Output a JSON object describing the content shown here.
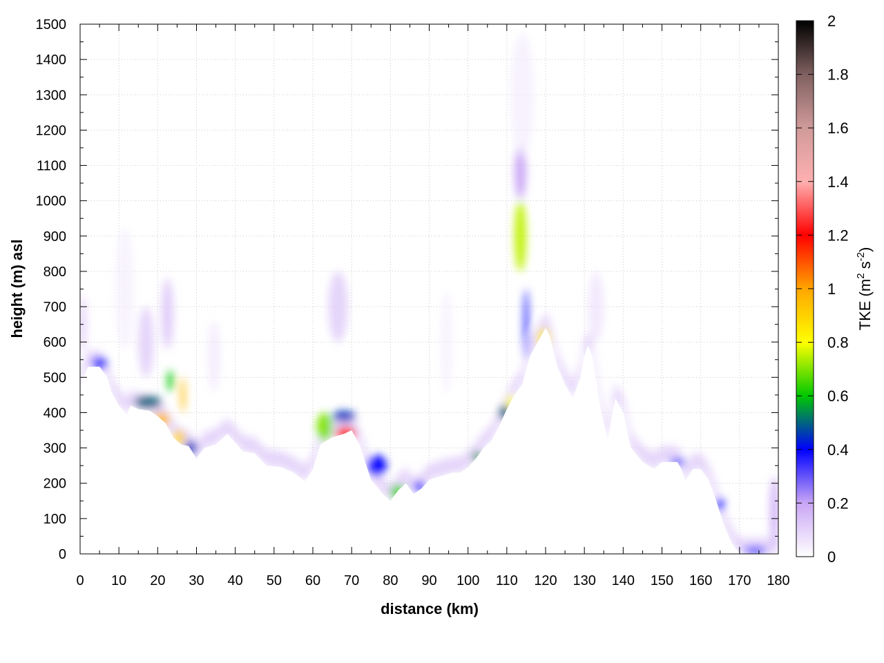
{
  "chart_data": {
    "type": "heatmap",
    "title": "",
    "xlabel": "distance (km)",
    "ylabel": "height (m) asl",
    "xlim": [
      0,
      180
    ],
    "ylim": [
      0,
      1500
    ],
    "xticks": [
      0,
      10,
      20,
      30,
      40,
      50,
      60,
      70,
      80,
      90,
      100,
      110,
      120,
      130,
      140,
      150,
      160,
      170,
      180
    ],
    "yticks": [
      0,
      100,
      200,
      300,
      400,
      500,
      600,
      700,
      800,
      900,
      1000,
      1100,
      1200,
      1300,
      1400,
      1500
    ],
    "grid": true,
    "colorbar": {
      "label_prefix": "TKE (m",
      "label_sup1": "2",
      "label_mid": " s",
      "label_sup2": "-2",
      "label_suffix": ")",
      "range": [
        0,
        2
      ],
      "ticks": [
        "0",
        "0.2",
        "0.4",
        "0.6",
        "0.8",
        "1",
        "1.2",
        "1.4",
        "1.6",
        "1.8",
        "2"
      ],
      "colors": [
        {
          "v": 0.0,
          "c": "#ffffff"
        },
        {
          "v": 0.2,
          "c": "#c9a6f5"
        },
        {
          "v": 0.4,
          "c": "#0000ff"
        },
        {
          "v": 0.6,
          "c": "#00c800"
        },
        {
          "v": 0.8,
          "c": "#ffff00"
        },
        {
          "v": 1.0,
          "c": "#ffa500"
        },
        {
          "v": 1.2,
          "c": "#ff0000"
        },
        {
          "v": 1.4,
          "c": "#ffb0b0"
        },
        {
          "v": 1.6,
          "c": "#d09a9a"
        },
        {
          "v": 1.8,
          "c": "#806060"
        },
        {
          "v": 2.0,
          "c": "#000000"
        }
      ]
    },
    "terrain": {
      "x": [
        0,
        2,
        4,
        5,
        7,
        8,
        10,
        12,
        13,
        15,
        18,
        20,
        22,
        24,
        26,
        28,
        30,
        32,
        35,
        38,
        42,
        45,
        48,
        52,
        55,
        58,
        60,
        62,
        65,
        68,
        70,
        72,
        75,
        78,
        80,
        82,
        84,
        86,
        88,
        90,
        93,
        96,
        98,
        100,
        102,
        104,
        106,
        108,
        110,
        112,
        114,
        116,
        118,
        120,
        121,
        123,
        125,
        127,
        129,
        130,
        131,
        132,
        134,
        136,
        138,
        140,
        142,
        145,
        148,
        150,
        152,
        154,
        155,
        156,
        158,
        160,
        162,
        164,
        166,
        168,
        170,
        172,
        175,
        178,
        180
      ],
      "y": [
        470,
        530,
        530,
        530,
        500,
        460,
        420,
        395,
        420,
        410,
        405,
        390,
        370,
        330,
        310,
        305,
        270,
        300,
        310,
        340,
        290,
        285,
        250,
        245,
        230,
        205,
        240,
        310,
        330,
        340,
        350,
        310,
        210,
        170,
        150,
        180,
        200,
        170,
        185,
        210,
        220,
        230,
        230,
        245,
        270,
        300,
        320,
        360,
        410,
        450,
        480,
        560,
        600,
        640,
        620,
        530,
        480,
        440,
        500,
        560,
        590,
        560,
        420,
        320,
        440,
        400,
        300,
        260,
        240,
        260,
        260,
        260,
        240,
        205,
        240,
        240,
        210,
        150,
        80,
        30,
        0,
        0,
        0,
        0,
        0
      ]
    },
    "tke_cells": [
      {
        "x": 0,
        "y": 650,
        "w": 1.5,
        "h": 160,
        "v": 0.12
      },
      {
        "x": 3,
        "y": 540,
        "w": 4,
        "h": 35,
        "v": 0.35
      },
      {
        "x": 9,
        "y": 750,
        "w": 5,
        "h": 350,
        "v": 0.04
      },
      {
        "x": 14,
        "y": 430,
        "w": 7,
        "h": 35,
        "v": 0.5
      },
      {
        "x": 15,
        "y": 600,
        "w": 4,
        "h": 200,
        "v": 0.1
      },
      {
        "x": 19,
        "y": 380,
        "w": 4,
        "h": 40,
        "v": 0.95
      },
      {
        "x": 21,
        "y": 680,
        "w": 3,
        "h": 200,
        "v": 0.12
      },
      {
        "x": 22.5,
        "y": 490,
        "w": 1.5,
        "h": 60,
        "v": 0.6
      },
      {
        "x": 24,
        "y": 330,
        "w": 3,
        "h": 40,
        "v": 0.9
      },
      {
        "x": 26,
        "y": 450,
        "w": 1,
        "h": 100,
        "v": 0.95
      },
      {
        "x": 27,
        "y": 300,
        "w": 3,
        "h": 40,
        "v": 0.45
      },
      {
        "x": 33,
        "y": 560,
        "w": 3,
        "h": 200,
        "v": 0.07
      },
      {
        "x": 61,
        "y": 360,
        "w": 4,
        "h": 80,
        "v": 0.7
      },
      {
        "x": 66,
        "y": 340,
        "w": 5,
        "h": 40,
        "v": 1.15
      },
      {
        "x": 65,
        "y": 390,
        "w": 6,
        "h": 30,
        "v": 0.45
      },
      {
        "x": 64,
        "y": 700,
        "w": 5,
        "h": 200,
        "v": 0.1
      },
      {
        "x": 74,
        "y": 250,
        "w": 5,
        "h": 60,
        "v": 0.4
      },
      {
        "x": 80,
        "y": 175,
        "w": 4,
        "h": 40,
        "v": 0.65
      },
      {
        "x": 86,
        "y": 190,
        "w": 3,
        "h": 30,
        "v": 0.35
      },
      {
        "x": 93,
        "y": 600,
        "w": 3,
        "h": 300,
        "v": 0.04
      },
      {
        "x": 101,
        "y": 275,
        "w": 3,
        "h": 25,
        "v": 0.55
      },
      {
        "x": 108,
        "y": 400,
        "w": 3,
        "h": 40,
        "v": 0.5
      },
      {
        "x": 110,
        "y": 430,
        "w": 2,
        "h": 40,
        "v": 0.8
      },
      {
        "x": 112,
        "y": 900,
        "w": 3,
        "h": 200,
        "v": 0.75
      },
      {
        "x": 112,
        "y": 1080,
        "w": 3,
        "h": 150,
        "v": 0.2
      },
      {
        "x": 111,
        "y": 1300,
        "w": 6,
        "h": 350,
        "v": 0.05
      },
      {
        "x": 114.5,
        "y": 650,
        "w": 1,
        "h": 200,
        "v": 0.4
      },
      {
        "x": 118,
        "y": 610,
        "w": 3,
        "h": 60,
        "v": 0.85
      },
      {
        "x": 131,
        "y": 700,
        "w": 4,
        "h": 200,
        "v": 0.08
      },
      {
        "x": 152,
        "y": 260,
        "w": 4,
        "h": 20,
        "v": 0.35
      },
      {
        "x": 164,
        "y": 140,
        "w": 2,
        "h": 40,
        "v": 0.4
      },
      {
        "x": 171,
        "y": 10,
        "w": 6,
        "h": 20,
        "v": 0.35
      },
      {
        "x": 178,
        "y": 120,
        "w": 2,
        "h": 200,
        "v": 0.2
      }
    ]
  }
}
